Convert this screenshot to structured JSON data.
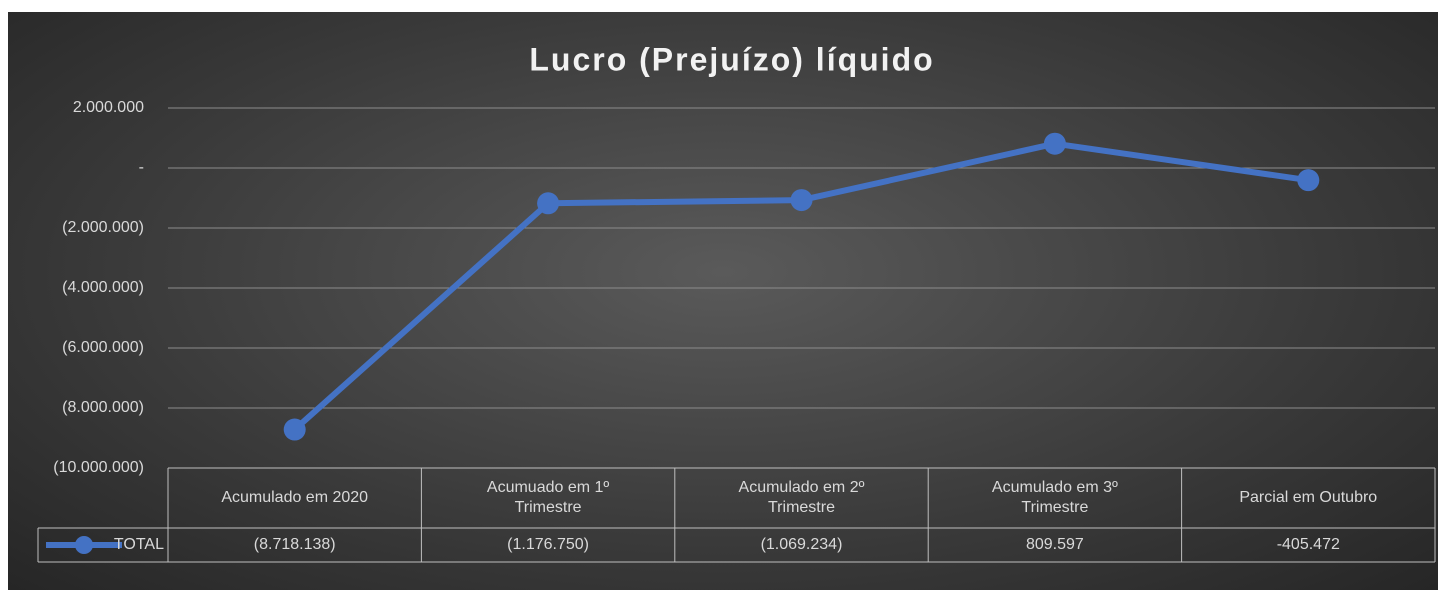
{
  "chart_data": {
    "type": "line",
    "title": "Lucro (Prejuízo) líquido",
    "categories": [
      "Acumulado em 2020",
      "Acumuado em 1º Trimestre",
      "Acumulado em 2º Trimestre",
      "Acumulado em 3º Trimestre",
      "Parcial em Outubro"
    ],
    "series": [
      {
        "name": "TOTAL",
        "color": "#4472c4",
        "values": [
          -8718138,
          -1176750,
          -1069234,
          809597,
          -405472
        ],
        "value_labels": [
          "(8.718.138)",
          "(1.176.750)",
          "(1.069.234)",
          "809.597",
          "-405.472"
        ]
      }
    ],
    "ylim": [
      -10000000,
      2000000
    ],
    "yticks": [
      {
        "value": 2000000,
        "label": "2.000.000"
      },
      {
        "value": 0,
        "label": "-"
      },
      {
        "value": -2000000,
        "label": "(2.000.000)"
      },
      {
        "value": -4000000,
        "label": "(4.000.000)"
      },
      {
        "value": -6000000,
        "label": "(6.000.000)"
      },
      {
        "value": -8000000,
        "label": "(8.000.000)"
      },
      {
        "value": -10000000,
        "label": "(10.000.000)"
      }
    ],
    "grid": true,
    "legend": "table"
  }
}
